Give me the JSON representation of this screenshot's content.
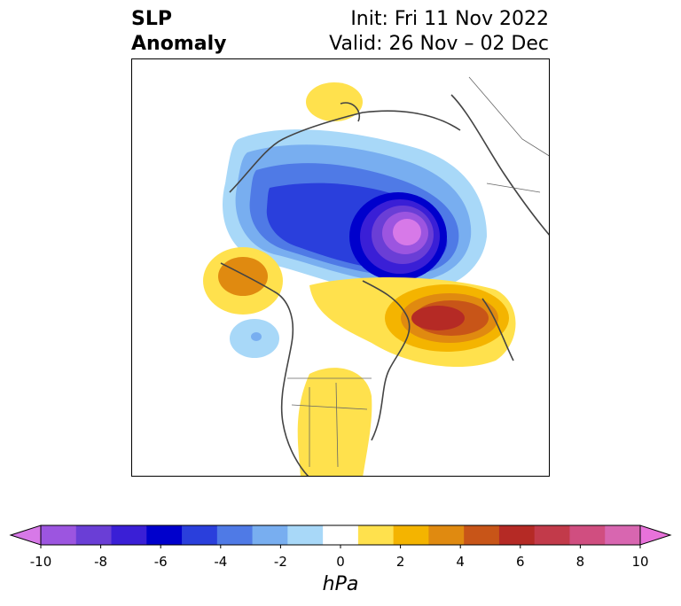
{
  "title": {
    "left_line1": "SLP",
    "left_line2": "Anomaly",
    "right_line1": "Init: Fri 11 Nov 2022",
    "right_line2": "Valid: 26 Nov – 02 Dec"
  },
  "colorbar": {
    "units": "hPa",
    "ticks": [
      "-10",
      "-8",
      "-6",
      "-4",
      "-2",
      "0",
      "2",
      "4",
      "6",
      "8",
      "10"
    ],
    "colors": [
      "#d779e8",
      "#9c55e0",
      "#6a3ed6",
      "#3a1fd6",
      "#0000cc",
      "#2a3fdc",
      "#4f7ae6",
      "#78aef0",
      "#a8d8f8",
      "#ffffff",
      "#ffe14d",
      "#f4b400",
      "#e08a10",
      "#c85518",
      "#b52a25",
      "#c23a4a",
      "#d04e80",
      "#d866b0",
      "#e872da"
    ]
  }
}
